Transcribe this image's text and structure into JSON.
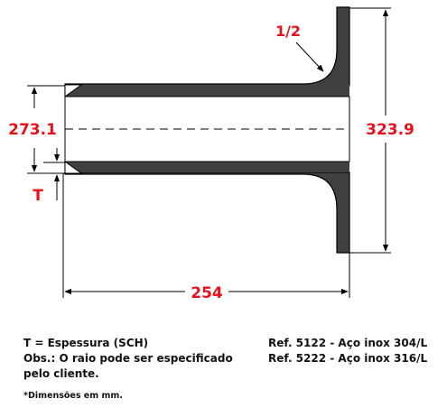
{
  "dimensions": {
    "top_label": "1/2",
    "left_diameter": "273.1",
    "right_diameter": "323.9",
    "thickness_symbol": "T",
    "length": "254"
  },
  "notes": {
    "line1": "T = Espessura (SCH)",
    "line2": "Obs.: O raio pode ser especificado",
    "line3": "pelo cliente.",
    "footnote": "*Dimensões em mm."
  },
  "refs": {
    "ref1": "Ref. 5122 - Aço inox 304/L",
    "ref2": "Ref. 5222 - Aço inox 316/L"
  },
  "colors": {
    "label_red": "#e8101a",
    "part_fill": "#404040",
    "line": "#000000"
  }
}
